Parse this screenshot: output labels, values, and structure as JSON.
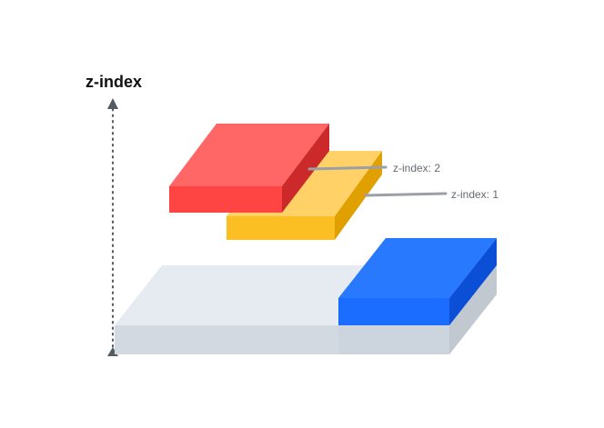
{
  "diagram": {
    "axis_title": "z-index",
    "labels": {
      "red_layer": "z-index: 2",
      "yellow_layer": "z-index: 1"
    },
    "colors": {
      "red_top": "#ff6666",
      "red_front": "#ff4444",
      "red_side": "#cc2a2a",
      "yellow_top": "#ffd166",
      "yellow_front": "#fbbf24",
      "yellow_side": "#e0a000",
      "blue_top": "#2979ff",
      "blue_front": "#1a6dff",
      "blue_side": "#0a4fd6",
      "base_top": "#e6ebf1",
      "base_front": "#d3d9e1",
      "base_side": "#c2c8d0",
      "axis": "#555b63",
      "leader": "#9aa0a6"
    }
  }
}
